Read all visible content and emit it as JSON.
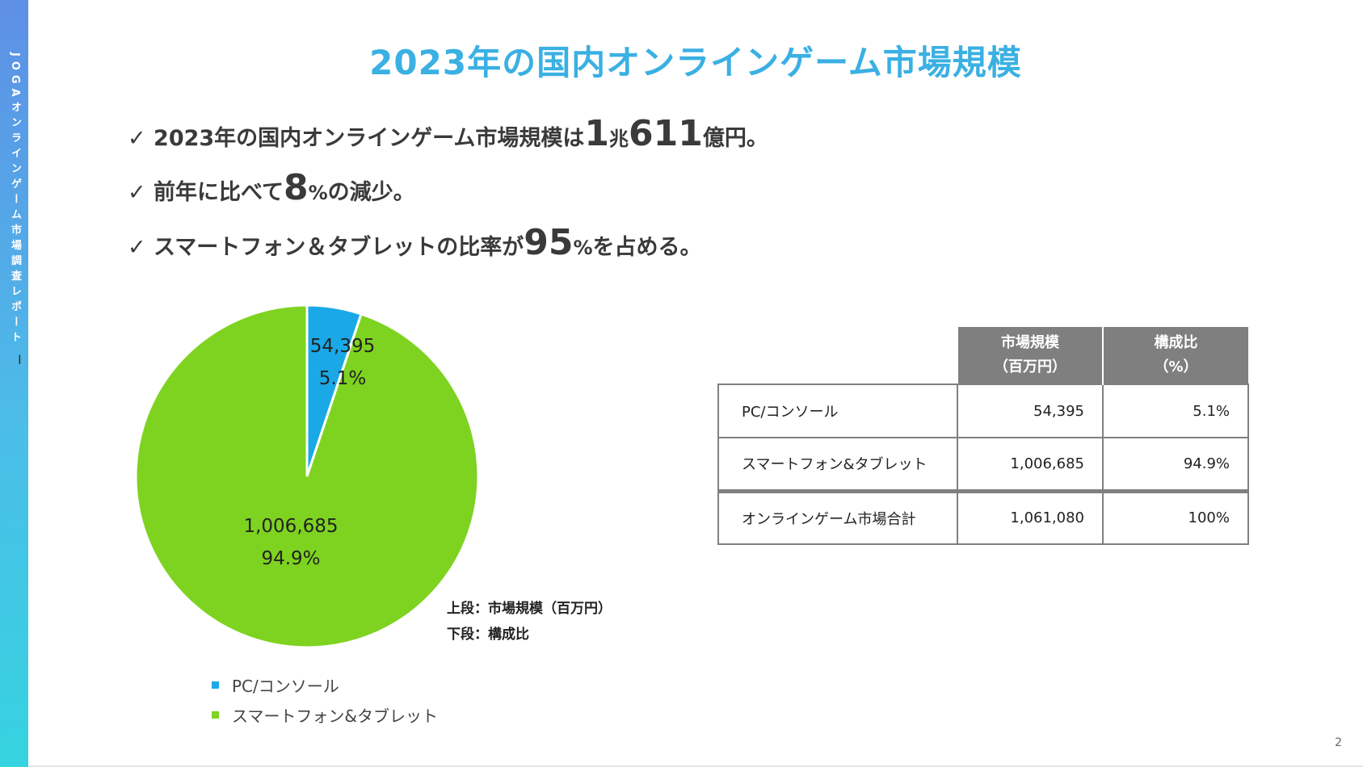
{
  "sidebar": {
    "text": "JOGAオンラインゲーム市場調査レポート",
    "cursor_glyph": "I"
  },
  "title": "2023年の国内オンラインゲーム市場規模",
  "bullets": [
    {
      "check": "✓",
      "pre": "2023年の国内オンラインゲーム市場規模は",
      "big1": "1",
      "unit1": "兆",
      "big2": "611",
      "post": "億円。"
    },
    {
      "check": "✓",
      "pre": "前年に比べて",
      "big1": "8",
      "unit1": "%",
      "post": "の減少。"
    },
    {
      "check": "✓",
      "pre": "スマートフォン＆タブレットの比率が",
      "big1": "95",
      "unit1": "%",
      "post": "を占める。"
    }
  ],
  "chart_data": {
    "type": "pie",
    "title": "",
    "slices": [
      {
        "name": "PC/コンソール",
        "value": 54395,
        "value_label": "54,395",
        "percent_label": "5.1%",
        "color": "#1aa9e6"
      },
      {
        "name": "スマートフォン&タブレット",
        "value": 1006685,
        "value_label": "1,006,685",
        "percent_label": "94.9%",
        "color": "#7ed321"
      }
    ],
    "start_angle": "top",
    "direction": "clockwise",
    "legend_position": "bottom-left",
    "note": [
      "上段：市場規模（百万円）",
      "下段：構成比"
    ]
  },
  "table": {
    "headers": [
      {
        "line1": "市場規模",
        "line2": "（百万円）"
      },
      {
        "line1": "構成比",
        "line2": "（%）"
      }
    ],
    "rows": [
      {
        "name": "PC/コンソール",
        "size": "54,395",
        "ratio": "5.1%"
      },
      {
        "name": "スマートフォン&タブレット",
        "size": "1,006,685",
        "ratio": "94.9%"
      },
      {
        "name": "オンラインゲーム市場合計",
        "size": "1,061,080",
        "ratio": "100%"
      }
    ]
  },
  "page_number": "2",
  "colors": {
    "accent_title": "#3ab0e3",
    "sidebar_top": "#5e8fe6",
    "sidebar_bottom": "#36d3e0",
    "table_header": "#7f7f7f"
  }
}
